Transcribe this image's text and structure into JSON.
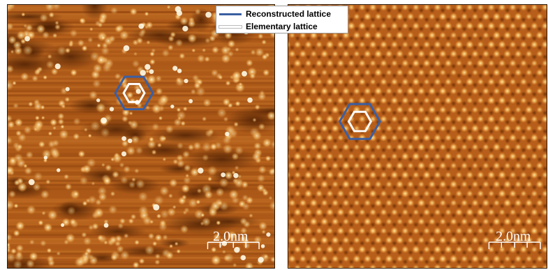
{
  "legend": {
    "items": [
      {
        "label": "Reconstructed lattice",
        "color": "#3a5fa3"
      },
      {
        "label": "Elementary lattice",
        "color": "#ffffff"
      }
    ]
  },
  "panels": {
    "left": {
      "scale_label": "2.0nm"
    },
    "right": {
      "scale_label": "2.0nm"
    }
  },
  "colors": {
    "background_dark": "#5e2a06",
    "background_mid": "#b8611a",
    "bright_spot": "#fff4c0",
    "hexagon_outer": "#3a5fa3",
    "hexagon_inner": "#ffffff"
  }
}
